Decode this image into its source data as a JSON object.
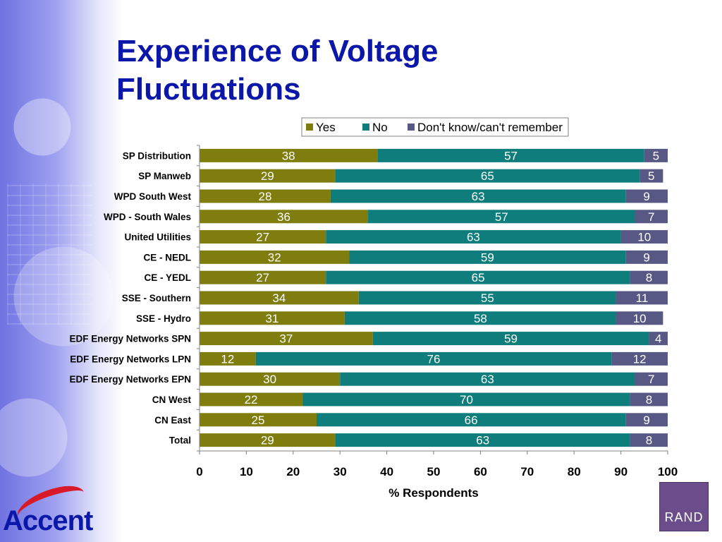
{
  "slide": {
    "title_line1": "Experience of Voltage",
    "title_line2": "Fluctuations"
  },
  "logos": {
    "accent": "Accent",
    "rand": "RAND"
  },
  "chart_data": {
    "type": "bar",
    "orientation": "horizontal",
    "stacked": true,
    "categories": [
      "SP Distribution",
      "SP Manweb",
      "WPD South West",
      "WPD - South Wales",
      "United Utilities",
      "CE - NEDL",
      "CE - YEDL",
      "SSE - Southern",
      "SSE - Hydro",
      "EDF Energy Networks SPN",
      "EDF Energy Networks LPN",
      "EDF Energy Networks EPN",
      "CN West",
      "CN East",
      "Total"
    ],
    "series": [
      {
        "name": "Yes",
        "color": "#7f7d0e",
        "values": [
          38,
          29,
          28,
          36,
          27,
          32,
          27,
          34,
          31,
          37,
          12,
          30,
          22,
          25,
          29
        ]
      },
      {
        "name": "No",
        "color": "#0f7d7b",
        "values": [
          57,
          65,
          63,
          57,
          63,
          59,
          65,
          55,
          58,
          59,
          76,
          63,
          70,
          66,
          63
        ]
      },
      {
        "name": "Don't know/can't remember",
        "color": "#585884",
        "values": [
          5,
          5,
          9,
          7,
          10,
          9,
          8,
          11,
          10,
          4,
          12,
          7,
          8,
          9,
          8
        ]
      }
    ],
    "xlabel": "% Respondents",
    "ylabel": "",
    "xlim": [
      0,
      100
    ],
    "xticks": [
      "0",
      "10",
      "20",
      "30",
      "40",
      "50",
      "60",
      "70",
      "80",
      "90",
      "100"
    ],
    "legend_position": "top",
    "grid": false
  }
}
